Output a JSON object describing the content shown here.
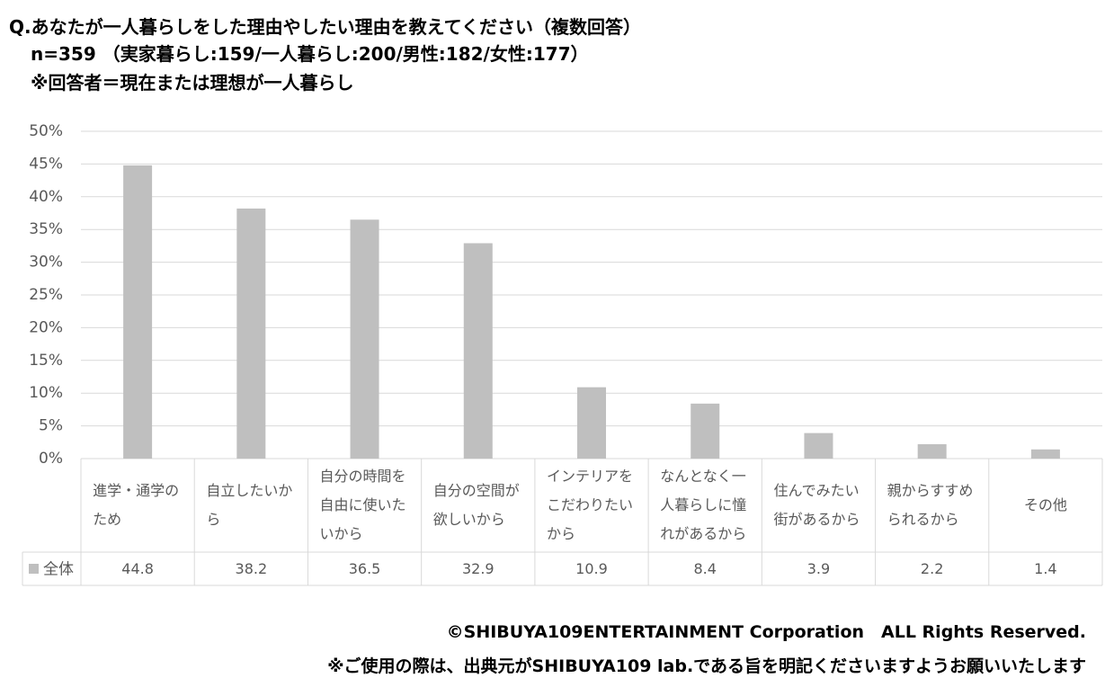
{
  "header": {
    "title": "Q.あなたが一人暮らしをした理由やしたい理由を教えてください（複数回答）",
    "sample": "n=359 （実家暮らし:159/一人暮らし:200/男性:182/女性:177）",
    "note": "※回答者＝現在または理想が一人暮らし"
  },
  "chart_data": {
    "type": "bar",
    "categories": [
      "進学・通学のため",
      "自立したいから",
      "自分の時間を自由に使いたいから",
      "自分の空間が欲しいから",
      "インテリアをこだわりたいから",
      "なんとなく一人暮らしに憧れがあるから",
      "住んでみたい街があるから",
      "親からすすめられるから",
      "その他"
    ],
    "series": [
      {
        "name": "全体",
        "color": "#bfbfbf",
        "values": [
          44.8,
          38.2,
          36.5,
          32.9,
          10.9,
          8.4,
          3.9,
          2.2,
          1.4
        ]
      }
    ],
    "ylim": [
      0,
      50
    ],
    "yticks": [
      {
        "value": 0,
        "label": "0%"
      },
      {
        "value": 5,
        "label": "5%"
      },
      {
        "value": 10,
        "label": "10%"
      },
      {
        "value": 15,
        "label": "15%"
      },
      {
        "value": 20,
        "label": "20%"
      },
      {
        "value": 25,
        "label": "25%"
      },
      {
        "value": 30,
        "label": "30%"
      },
      {
        "value": 35,
        "label": "35%"
      },
      {
        "value": 40,
        "label": "40%"
      },
      {
        "value": 45,
        "label": "45%"
      },
      {
        "value": 50,
        "label": "50%"
      }
    ],
    "grid": true,
    "data_table": true
  },
  "footer": {
    "copyright": "©SHIBUYA109ENTERTAINMENT Corporation　ALL Rights Reserved.",
    "usage": "※ご使用の際は、出典元がSHIBUYA109 lab.である旨を明記くださいますようお願いいたします"
  }
}
